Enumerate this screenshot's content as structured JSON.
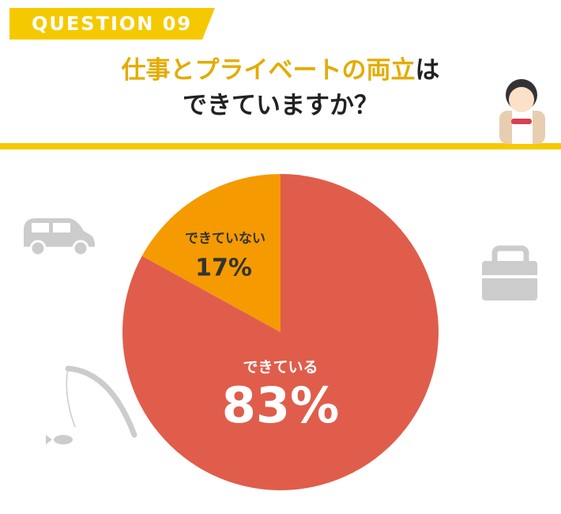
{
  "question_label": "QUESTION 09",
  "chart_data": {
    "type": "pie",
    "title": [
      "仕事とプライベートの両立",
      "は",
      "できていますか？"
    ],
    "categories": [
      "できている",
      "できていない"
    ],
    "values": [
      83,
      17
    ],
    "value_labels": [
      "83%",
      "17%"
    ],
    "colors": [
      "#e05d4b",
      "#f59a00"
    ],
    "label_colors": [
      "#ffffff",
      "#333333"
    ]
  }
}
